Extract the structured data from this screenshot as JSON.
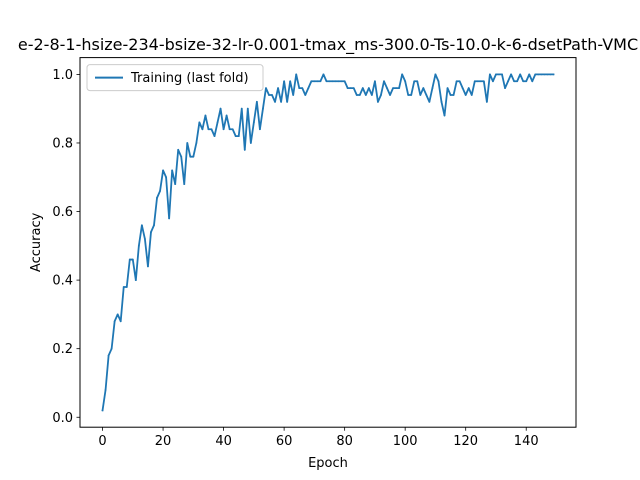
{
  "chart_data": {
    "type": "line",
    "title": "e-2-8-1-hsize-234-bsize-32-lr-0.001-tmax_ms-300.0-Ts-10.0-k-6-dsetPath-VMC",
    "xlabel": "Epoch",
    "ylabel": "Accuracy",
    "xlim": [
      -7.45,
      156.45
    ],
    "ylim": [
      -0.029,
      1.049
    ],
    "xticks": [
      0,
      20,
      40,
      60,
      80,
      100,
      120,
      140
    ],
    "yticks": [
      0.0,
      0.2,
      0.4,
      0.6,
      0.8,
      1.0
    ],
    "xtick_labels": [
      "0",
      "20",
      "40",
      "60",
      "80",
      "100",
      "120",
      "140"
    ],
    "ytick_labels": [
      "0.0",
      "0.2",
      "0.4",
      "0.6",
      "0.8",
      "1.0"
    ],
    "grid": false,
    "legend_position": "upper-left",
    "colors": {
      "series": "#1f77b4"
    },
    "series": [
      {
        "name": "Training (last fold)",
        "x": [
          0,
          1,
          2,
          3,
          4,
          5,
          6,
          7,
          8,
          9,
          10,
          11,
          12,
          13,
          14,
          15,
          16,
          17,
          18,
          19,
          20,
          21,
          22,
          23,
          24,
          25,
          26,
          27,
          28,
          29,
          30,
          31,
          32,
          33,
          34,
          35,
          36,
          37,
          38,
          39,
          40,
          41,
          42,
          43,
          44,
          45,
          46,
          47,
          48,
          49,
          50,
          51,
          52,
          53,
          54,
          55,
          56,
          57,
          58,
          59,
          60,
          61,
          62,
          63,
          64,
          65,
          66,
          67,
          68,
          69,
          70,
          71,
          72,
          73,
          74,
          75,
          76,
          77,
          78,
          79,
          80,
          81,
          82,
          83,
          84,
          85,
          86,
          87,
          88,
          89,
          90,
          91,
          92,
          93,
          94,
          95,
          96,
          97,
          98,
          99,
          100,
          101,
          102,
          103,
          104,
          105,
          106,
          107,
          108,
          109,
          110,
          111,
          112,
          113,
          114,
          115,
          116,
          117,
          118,
          119,
          120,
          121,
          122,
          123,
          124,
          125,
          126,
          127,
          128,
          129,
          130,
          131,
          132,
          133,
          134,
          135,
          136,
          137,
          138,
          139,
          140,
          141,
          142,
          143,
          144,
          145,
          146,
          147,
          148,
          149
        ],
        "y": [
          0.02,
          0.08,
          0.18,
          0.2,
          0.28,
          0.3,
          0.28,
          0.38,
          0.38,
          0.46,
          0.46,
          0.4,
          0.5,
          0.56,
          0.52,
          0.44,
          0.54,
          0.56,
          0.64,
          0.66,
          0.72,
          0.7,
          0.58,
          0.72,
          0.68,
          0.78,
          0.76,
          0.68,
          0.8,
          0.76,
          0.76,
          0.8,
          0.86,
          0.84,
          0.88,
          0.84,
          0.84,
          0.82,
          0.86,
          0.9,
          0.84,
          0.88,
          0.84,
          0.84,
          0.82,
          0.82,
          0.9,
          0.78,
          0.9,
          0.8,
          0.86,
          0.92,
          0.84,
          0.9,
          0.96,
          0.94,
          0.94,
          0.92,
          0.96,
          0.92,
          0.98,
          0.92,
          0.98,
          0.94,
          1.0,
          0.96,
          0.96,
          0.94,
          0.96,
          0.98,
          0.98,
          0.98,
          0.98,
          1.0,
          0.98,
          0.98,
          0.98,
          0.98,
          0.98,
          0.98,
          0.98,
          0.96,
          0.96,
          0.96,
          0.94,
          0.94,
          0.96,
          0.94,
          0.96,
          0.94,
          0.98,
          0.92,
          0.94,
          0.98,
          0.96,
          0.94,
          0.96,
          0.96,
          0.96,
          1.0,
          0.98,
          0.94,
          0.94,
          0.98,
          0.98,
          0.94,
          0.96,
          0.94,
          0.92,
          0.96,
          1.0,
          0.98,
          0.92,
          0.88,
          0.96,
          0.94,
          0.94,
          0.98,
          0.98,
          0.96,
          0.94,
          0.96,
          0.94,
          0.98,
          0.98,
          0.98,
          0.98,
          0.92,
          1.0,
          0.98,
          1.0,
          1.0,
          1.0,
          0.96,
          0.98,
          1.0,
          0.98,
          0.98,
          1.0,
          0.98,
          0.98,
          1.0,
          0.98,
          1.0,
          1.0,
          1.0,
          1.0,
          1.0,
          1.0,
          1.0
        ]
      }
    ]
  }
}
